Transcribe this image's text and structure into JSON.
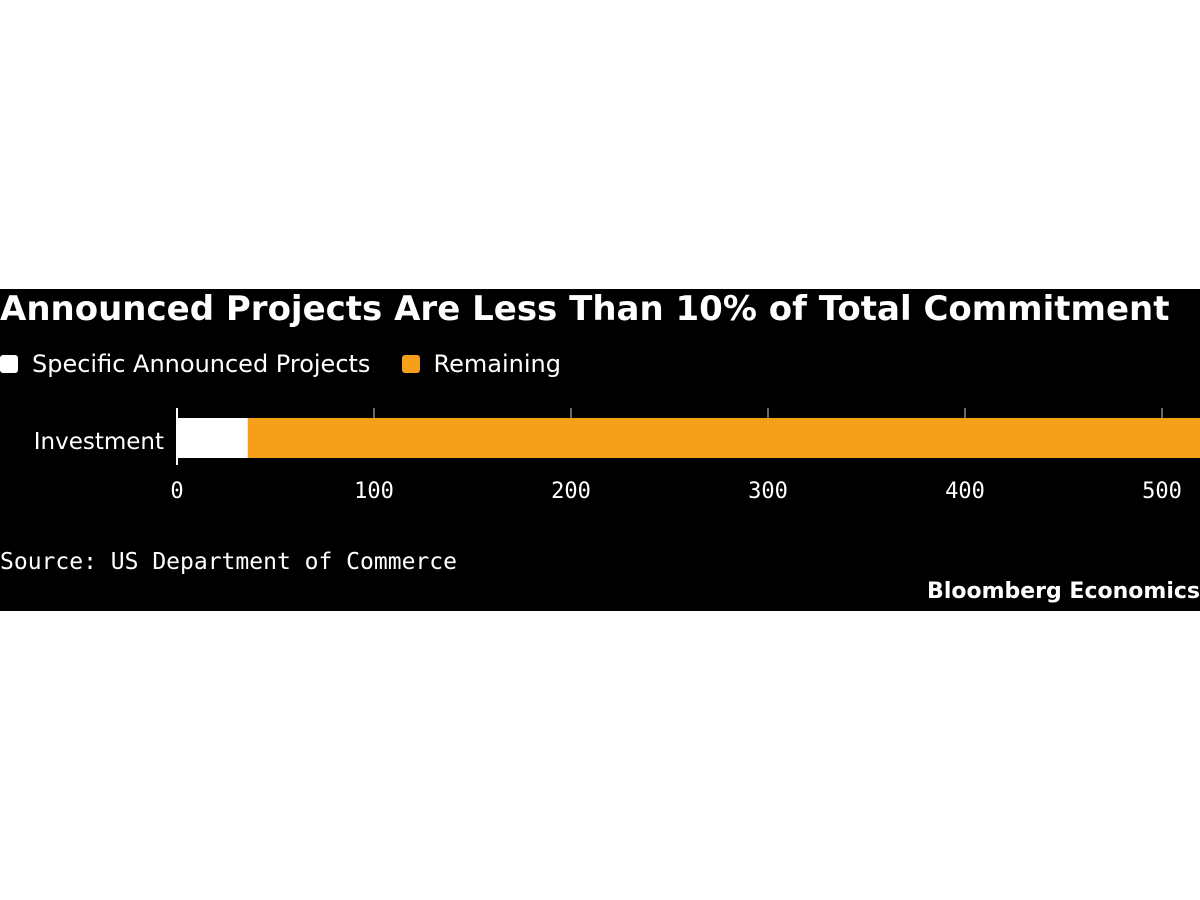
{
  "chart_data": {
    "type": "bar",
    "orientation": "horizontal",
    "stacked": true,
    "title": "Announced Projects Are Less Than 10% of Total Commitment",
    "categories": [
      "Investment"
    ],
    "series": [
      {
        "name": "Specific Announced Projects",
        "values": [
          36
        ],
        "color": "#ffffff"
      },
      {
        "name": "Remaining",
        "values": [
          490
        ],
        "color": "#f6a01a"
      }
    ],
    "xlim": [
      0,
      520
    ],
    "x_ticks": [
      0,
      100,
      200,
      300,
      400,
      500
    ],
    "x_tick_labels": [
      "0",
      "100",
      "200",
      "300",
      "400",
      "500"
    ],
    "xlabel": "",
    "ylabel": "",
    "legend_position": "top-left",
    "grid": false,
    "source": "Source: US Department of Commerce",
    "brand": "Bloomberg Economics"
  },
  "colors": {
    "background": "#000000",
    "text": "#ffffff",
    "tick": "#8a8a8a"
  }
}
